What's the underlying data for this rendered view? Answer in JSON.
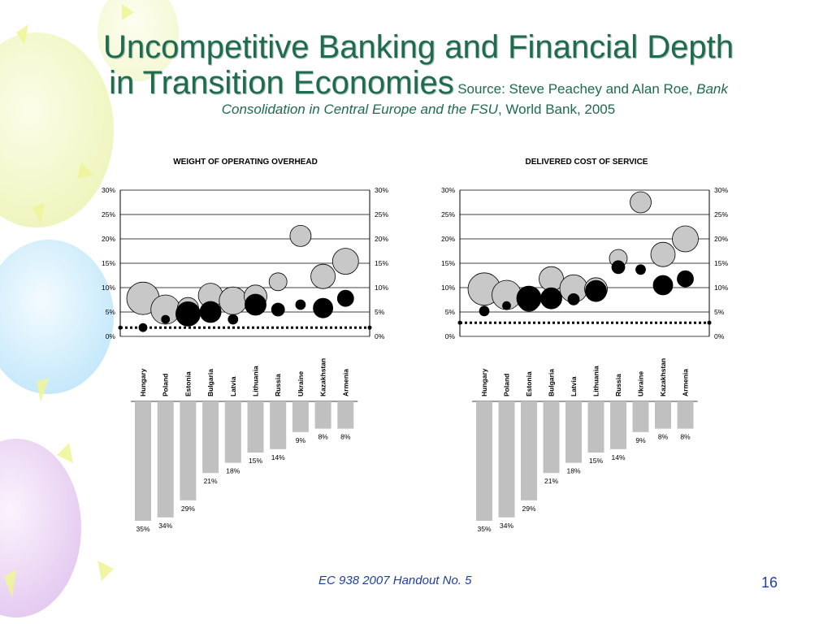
{
  "slide": {
    "title_line1": "Uncompetitive Banking and Financial Depth",
    "title_line2": "in Transition Economies",
    "source_prefix": "Source: Steve Peachey and Alan Roe, ",
    "source_italic1": "Bank",
    "source_italic2": "Consolidation in Central Europe and the FSU",
    "source_suffix": ", World Bank, 2005",
    "footer": "EC 938 2007 Handout No. 5",
    "page_number": "16"
  },
  "colors": {
    "title": "#1e6b4e",
    "footer": "#1f3f9e",
    "gray_bubble": "#c8c8c8",
    "black_bubble": "#000000",
    "bar_fill": "#c0c0c0"
  },
  "chart_data": [
    {
      "type": "bubble",
      "title": "WEIGHT OF OPERATING OVERHEAD",
      "categories": [
        "Hungary",
        "Poland",
        "Estonia",
        "Bulgaria",
        "Latvia",
        "Lithuania",
        "Russia",
        "Ukraine",
        "Kazakhstan",
        "Armenia"
      ],
      "ylim": [
        0,
        30
      ],
      "yticks": [
        "0%",
        "5%",
        "10%",
        "15%",
        "20%",
        "25%",
        "30%"
      ],
      "reference_line": 1.8,
      "series": [
        {
          "color": "gray",
          "values": [
            7.8,
            5.5,
            5.8,
            8.4,
            7.3,
            8.2,
            11.2,
            20.6,
            12.3,
            15.4
          ],
          "sizes": [
            20,
            18,
            13,
            15,
            17,
            14,
            11,
            13,
            15,
            16
          ]
        },
        {
          "color": "black",
          "values": [
            1.8,
            3.5,
            4.6,
            5.0,
            3.5,
            6.5,
            5.5,
            6.5,
            5.8,
            7.8
          ],
          "sizes": [
            5,
            5,
            15,
            13,
            6,
            13,
            8,
            6,
            12,
            10
          ]
        }
      ],
      "bar_values": [
        35,
        34,
        29,
        21,
        18,
        15,
        14,
        9,
        8,
        8
      ],
      "bar_labels": [
        "35%",
        "34%",
        "29%",
        "21%",
        "18%",
        "15%",
        "14%",
        "9%",
        "8%",
        "8%"
      ]
    },
    {
      "type": "bubble",
      "title": "DELIVERED COST OF SERVICE",
      "categories": [
        "Hungary",
        "Poland",
        "Estonia",
        "Bulgaria",
        "Latvia",
        "Lithuania",
        "Russia",
        "Ukraine",
        "Kazakhstan",
        "Armenia"
      ],
      "ylim": [
        0,
        30
      ],
      "yticks": [
        "0%",
        "5%",
        "10%",
        "15%",
        "20%",
        "25%",
        "30%"
      ],
      "reference_line": 2.8,
      "series": [
        {
          "color": "gray",
          "values": [
            9.7,
            8.5,
            7.3,
            11.8,
            9.8,
            9.7,
            16.0,
            27.5,
            16.8,
            20.0
          ],
          "sizes": [
            20,
            18,
            13,
            15,
            17,
            14,
            11,
            13,
            15,
            16
          ]
        },
        {
          "color": "black",
          "values": [
            5.2,
            6.3,
            7.8,
            7.8,
            7.6,
            9.3,
            14.2,
            13.7,
            10.5,
            11.8
          ],
          "sizes": [
            6,
            5,
            15,
            13,
            7,
            13,
            8,
            6,
            12,
            10
          ]
        }
      ],
      "bar_values": [
        35,
        34,
        29,
        21,
        18,
        15,
        14,
        9,
        8,
        8
      ],
      "bar_labels": [
        "35%",
        "34%",
        "29%",
        "21%",
        "18%",
        "15%",
        "14%",
        "9%",
        "8%",
        "8%"
      ]
    }
  ]
}
